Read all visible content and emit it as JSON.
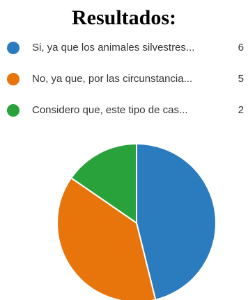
{
  "chart_data": {
    "type": "pie",
    "title": "Resultados:",
    "legend_position": "top",
    "slices": [
      {
        "label": "Si, ya que los animales silvestres...",
        "value": 6,
        "color": "#2b7bbf"
      },
      {
        "label": "No, ya que, por las circunstancia...",
        "value": 5,
        "color": "#e8750b"
      },
      {
        "label": "Considero que, este tipo de cas...",
        "value": 2,
        "color": "#2aa23c"
      }
    ]
  }
}
